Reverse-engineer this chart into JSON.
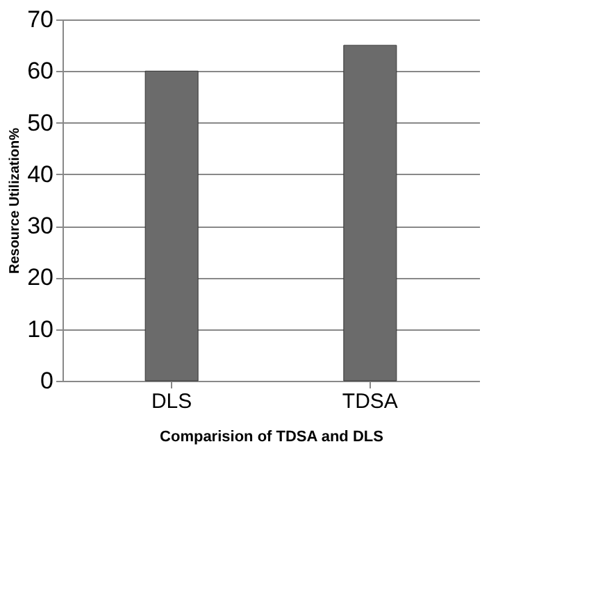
{
  "chart_data": {
    "type": "bar",
    "xlabel": "Comparision of TDSA and DLS",
    "ylabel": "Resource Utilization%",
    "categories": [
      "DLS",
      "TDSA"
    ],
    "values": [
      60,
      65
    ],
    "color": "#6b6b6b",
    "ylim": [
      0,
      70
    ],
    "yticks": [
      0,
      10,
      20,
      30,
      40,
      50,
      60,
      70
    ],
    "grid": "y"
  }
}
